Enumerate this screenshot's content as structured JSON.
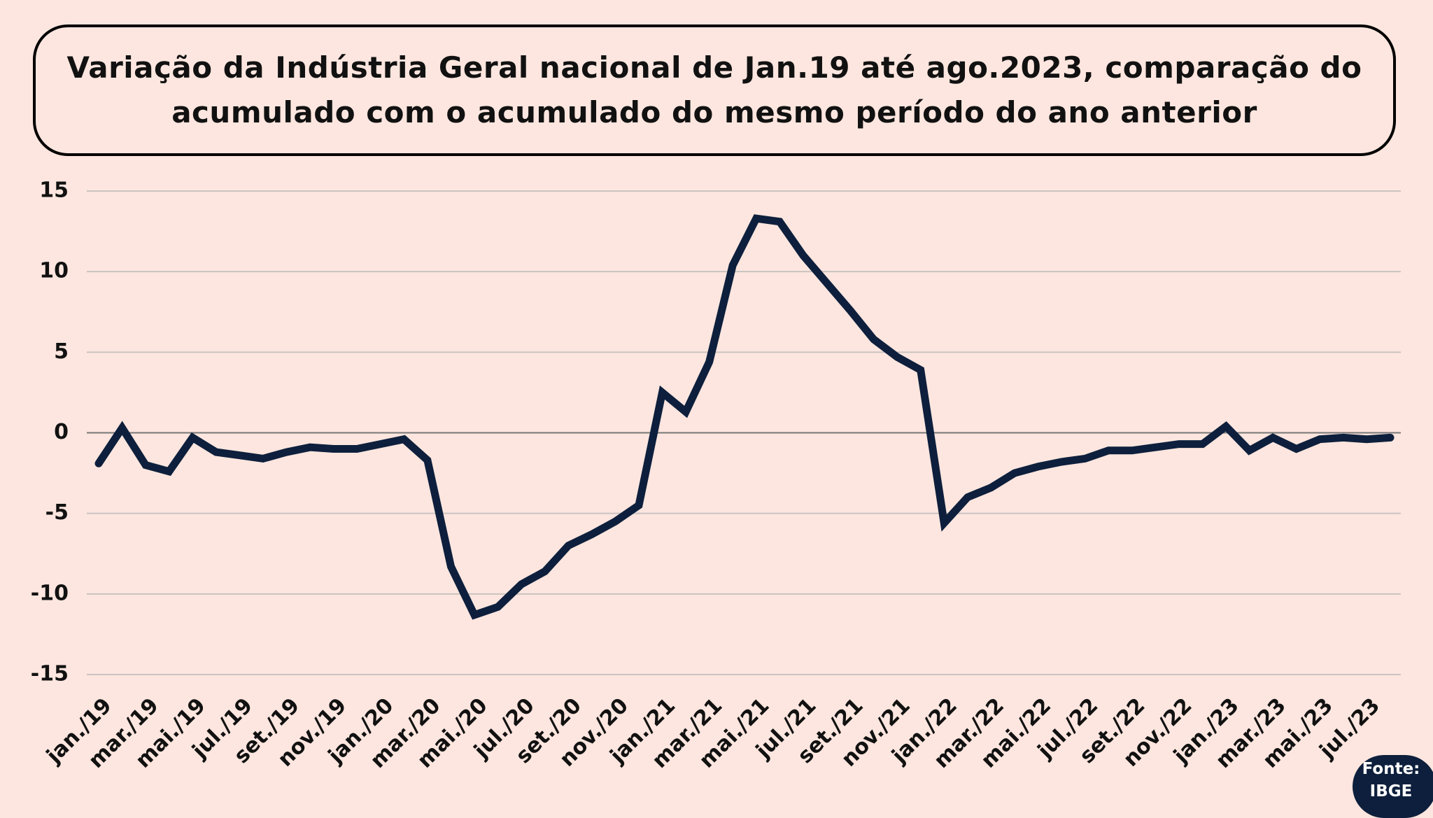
{
  "chart_data": {
    "type": "line",
    "title": "Variação da Indústria Geral nacional de Jan.19 até ago.2023, comparação do acumulado com o acumulado do mesmo período do ano anterior",
    "categories": [
      "jan./19",
      null,
      "mar./19",
      null,
      "mai./19",
      null,
      "jul./19",
      null,
      "set./19",
      null,
      "nov./19",
      null,
      "jan./20",
      null,
      "mar./20",
      null,
      "mai./20",
      null,
      "jul./20",
      null,
      "set./20",
      null,
      "nov./20",
      null,
      "jan./21",
      null,
      "mar./21",
      null,
      "mai./21",
      null,
      "jul./21",
      null,
      "set./21",
      null,
      "nov./21",
      null,
      "jan./22",
      null,
      "mar./22",
      null,
      "mai./22",
      null,
      "jul./22",
      null,
      "set./22",
      null,
      "nov./22",
      null,
      "jan./23",
      null,
      "mar./23",
      null,
      "mai./23",
      null,
      "jul./23",
      null
    ],
    "values": [
      -1.9,
      0.3,
      -2.0,
      -2.4,
      -0.3,
      -1.2,
      -1.4,
      -1.6,
      -1.2,
      -0.9,
      -1.0,
      -1.0,
      -0.7,
      -0.4,
      -1.7,
      -8.3,
      -11.3,
      -10.8,
      -9.4,
      -8.6,
      -7.0,
      -6.3,
      -5.5,
      -4.5,
      2.5,
      1.3,
      4.4,
      10.4,
      13.3,
      13.1,
      11.0,
      9.3,
      7.6,
      5.8,
      4.7,
      3.9,
      -5.6,
      -4.0,
      -3.4,
      -2.5,
      -2.1,
      -1.8,
      -1.6,
      -1.1,
      -1.1,
      -0.9,
      -0.7,
      -0.7,
      0.4,
      -1.1,
      -0.3,
      -1.0,
      -0.4,
      -0.3,
      -0.4,
      -0.3
    ],
    "color": "#0d1f3c",
    "ylim": [
      -15,
      15
    ],
    "yticks": [
      15,
      10,
      5,
      0,
      -5,
      -10,
      -15
    ],
    "grid": true,
    "source": [
      "Fonte:",
      "IBGE"
    ]
  }
}
